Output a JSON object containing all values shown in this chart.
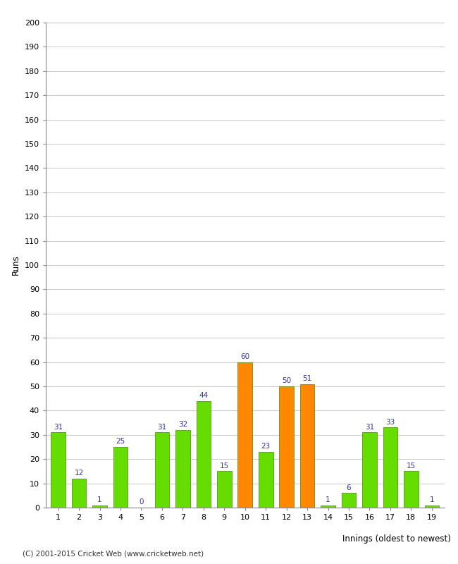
{
  "innings": [
    1,
    2,
    3,
    4,
    5,
    6,
    7,
    8,
    9,
    10,
    11,
    12,
    13,
    14,
    15,
    16,
    17,
    18,
    19
  ],
  "runs": [
    31,
    12,
    1,
    25,
    0,
    31,
    32,
    44,
    15,
    60,
    23,
    50,
    51,
    1,
    6,
    31,
    33,
    15,
    1
  ],
  "colors": [
    "#66dd00",
    "#66dd00",
    "#66dd00",
    "#66dd00",
    "#66dd00",
    "#66dd00",
    "#66dd00",
    "#66dd00",
    "#66dd00",
    "#ff8800",
    "#66dd00",
    "#ff8800",
    "#ff8800",
    "#66dd00",
    "#66dd00",
    "#66dd00",
    "#66dd00",
    "#66dd00",
    "#66dd00"
  ],
  "xlabel": "Innings (oldest to newest)",
  "ylabel": "Runs",
  "ylim": [
    0,
    200
  ],
  "yticks": [
    0,
    10,
    20,
    30,
    40,
    50,
    60,
    70,
    80,
    90,
    100,
    110,
    120,
    130,
    140,
    150,
    160,
    170,
    180,
    190,
    200
  ],
  "bg_color": "#ffffff",
  "grid_color": "#cccccc",
  "label_color": "#3333aa",
  "bar_edge_color": "#448800",
  "footer": "(C) 2001-2015 Cricket Web (www.cricketweb.net)"
}
